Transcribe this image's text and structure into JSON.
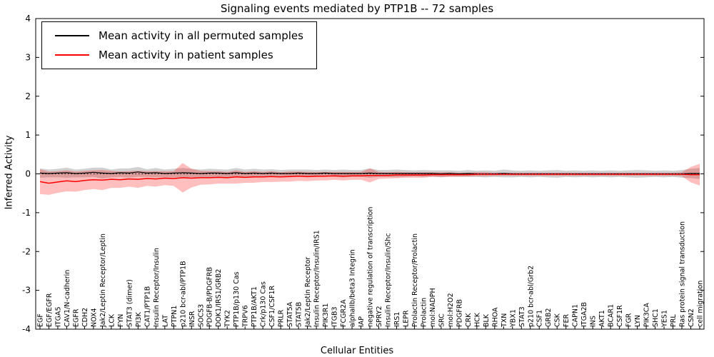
{
  "chart_data": {
    "type": "line",
    "title": "Signaling events mediated by PTP1B -- 72 samples",
    "xlabel": "Cellular Entities",
    "ylabel": "Inferred Activity",
    "ylim": [
      -4,
      4
    ],
    "yticks": [
      -4,
      -3,
      -2,
      -1,
      0,
      1,
      2,
      3,
      4
    ],
    "grid": false,
    "legend_position": "upper left",
    "zero_line": {
      "y": 0,
      "style": "dotted",
      "color": "#000000"
    },
    "categories": [
      "EGF",
      "EGF/EGFR",
      "ITGA5",
      "CAV1/N-cadherin",
      "EGFR",
      "CDH2",
      "NOX4",
      "Jak2/Leptin Receptor/Leptin",
      "LCK",
      "FYN",
      "STAT3 (dimer)",
      "PI3K",
      "CAT1/PTP1B",
      "Insulin Receptor/Insulin",
      "LAT",
      "PTPN1",
      "p210 bcr-abl/PTP1B",
      "INSR",
      "SOCS3",
      "PDGFB-B/PDGFRB",
      "DOK1/IRS1/GRB2",
      "TYK2",
      "PTP1B/p130 Cas",
      "TRPV6",
      "PTP1B/AKT1",
      "Crk/p130 Cas",
      "CSF1/CSF1R",
      "PRLR",
      "STAT5A",
      "STAT5B",
      "Jak2/Leptin Receptor",
      "Insulin Receptor/Insulin/IRS1",
      "PIK3R1",
      "ITGB3",
      "FCGR2A",
      "alphaIIb/beta3 Integrin",
      "IAP",
      "negative regulation of transcription",
      "SPRY2",
      "Insulin Receptor/Insulin/Shc",
      "IRS1",
      "LEPR",
      "Prolactin Receptor/Prolactin",
      "Prolactin",
      "mol:NADPH",
      "SRC",
      "mol:H2O2",
      "PDGFRB",
      "CRK",
      "HCK",
      "BLK",
      "RHOA",
      "TXN",
      "YBX1",
      "STAT3",
      "p210 bcr-abl/Grb2",
      "CSF1",
      "GRB2",
      "CSK",
      "FER",
      "CAPN1",
      "ITGA2B",
      "INS",
      "AKT1",
      "BCAR1",
      "CSF1R",
      "FGR",
      "LYN",
      "PIK3CA",
      "SHC1",
      "YES1",
      "PRL",
      "Ras protein signal transduction",
      "CSN2",
      "cell migration"
    ],
    "series": [
      {
        "name": "Mean activity in all permuted samples",
        "color": "#000000",
        "band_color": "#999999",
        "band_opacity": 0.45,
        "values": [
          0.02,
          0.01,
          0.02,
          0.03,
          0.01,
          0.02,
          0.04,
          0.02,
          0.01,
          0.03,
          0.02,
          0.05,
          0.02,
          0.03,
          0.01,
          0.02,
          0.03,
          0.02,
          0.01,
          0.02,
          0.02,
          0.01,
          0.03,
          0.01,
          0.02,
          0.01,
          0.02,
          0.01,
          0.01,
          0.02,
          0.01,
          0.01,
          0.02,
          0.01,
          0.01,
          0.01,
          0.01,
          0.02,
          0.01,
          0.01,
          0.01,
          0.01,
          0.01,
          0.01,
          0.01,
          0.0,
          0.01,
          0.0,
          0.01,
          0.0,
          0.0,
          0.0,
          0.01,
          0.0,
          0.0,
          0.0,
          0.0,
          0.0,
          0.0,
          0.0,
          0.0,
          0.0,
          0.0,
          0.0,
          0.0,
          0.0,
          0.0,
          0.0,
          0.0,
          0.0,
          0.0,
          0.0,
          0.0,
          0.01,
          0.01
        ],
        "std": [
          0.12,
          0.1,
          0.11,
          0.13,
          0.1,
          0.11,
          0.12,
          0.14,
          0.1,
          0.11,
          0.12,
          0.13,
          0.1,
          0.12,
          0.1,
          0.11,
          0.12,
          0.11,
          0.1,
          0.11,
          0.1,
          0.1,
          0.12,
          0.1,
          0.11,
          0.1,
          0.1,
          0.09,
          0.1,
          0.09,
          0.1,
          0.09,
          0.09,
          0.09,
          0.1,
          0.09,
          0.09,
          0.12,
          0.09,
          0.09,
          0.1,
          0.09,
          0.08,
          0.09,
          0.08,
          0.09,
          0.08,
          0.08,
          0.09,
          0.08,
          0.09,
          0.08,
          0.1,
          0.09,
          0.08,
          0.09,
          0.08,
          0.09,
          0.1,
          0.08,
          0.09,
          0.08,
          0.09,
          0.08,
          0.09,
          0.08,
          0.09,
          0.1,
          0.09,
          0.08,
          0.09,
          0.08,
          0.1,
          0.12,
          0.14
        ]
      },
      {
        "name": "Mean activity in patient samples",
        "color": "#ff0000",
        "band_color": "#ff0000",
        "band_opacity": 0.25,
        "values": [
          -0.2,
          -0.24,
          -0.21,
          -0.18,
          -0.2,
          -0.17,
          -0.15,
          -0.16,
          -0.14,
          -0.15,
          -0.13,
          -0.14,
          -0.12,
          -0.13,
          -0.11,
          -0.12,
          -0.1,
          -0.11,
          -0.1,
          -0.1,
          -0.09,
          -0.1,
          -0.08,
          -0.09,
          -0.08,
          -0.08,
          -0.07,
          -0.08,
          -0.07,
          -0.06,
          -0.07,
          -0.06,
          -0.06,
          -0.05,
          -0.06,
          -0.05,
          -0.05,
          -0.04,
          -0.04,
          -0.04,
          -0.03,
          -0.03,
          -0.03,
          -0.03,
          -0.02,
          -0.02,
          -0.02,
          -0.02,
          -0.02,
          -0.01,
          -0.01,
          -0.01,
          -0.01,
          -0.01,
          -0.01,
          -0.01,
          -0.01,
          -0.01,
          -0.01,
          -0.01,
          -0.01,
          -0.01,
          -0.01,
          -0.01,
          -0.01,
          -0.01,
          -0.01,
          -0.01,
          -0.01,
          -0.01,
          -0.01,
          -0.01,
          -0.01,
          -0.02,
          -0.02
        ],
        "std": [
          0.32,
          0.3,
          0.28,
          0.27,
          0.26,
          0.25,
          0.24,
          0.26,
          0.22,
          0.21,
          0.2,
          0.22,
          0.19,
          0.2,
          0.18,
          0.19,
          0.38,
          0.24,
          0.18,
          0.17,
          0.16,
          0.15,
          0.17,
          0.14,
          0.15,
          0.13,
          0.14,
          0.12,
          0.13,
          0.12,
          0.12,
          0.11,
          0.11,
          0.1,
          0.11,
          0.1,
          0.1,
          0.18,
          0.09,
          0.08,
          0.08,
          0.07,
          0.07,
          0.07,
          0.06,
          0.06,
          0.06,
          0.05,
          0.05,
          0.05,
          0.05,
          0.04,
          0.04,
          0.04,
          0.04,
          0.04,
          0.04,
          0.04,
          0.04,
          0.04,
          0.04,
          0.04,
          0.04,
          0.04,
          0.04,
          0.04,
          0.04,
          0.04,
          0.04,
          0.04,
          0.04,
          0.04,
          0.05,
          0.2,
          0.28
        ]
      }
    ]
  }
}
